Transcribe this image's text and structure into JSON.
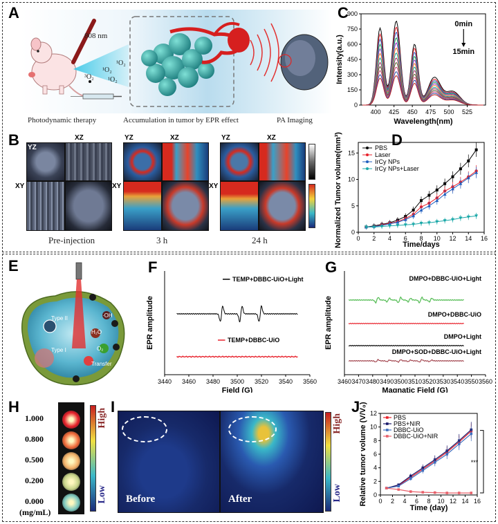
{
  "panels": {
    "A": {
      "label": "A",
      "wavelength": "808 nm",
      "o2_labels": [
        "¹O₂",
        "¹O₂",
        "¹O₂",
        "³O₂"
      ],
      "captions": [
        "Photodynamic therapy",
        "Accumulation in tumor by EPR effect",
        "PA Imaging"
      ]
    },
    "B": {
      "label": "B",
      "view_labels": [
        "YZ",
        "XZ",
        "YZ",
        "XZ",
        "YZ",
        "XZ",
        "XY",
        "XY",
        "XY"
      ],
      "captions": [
        "Pre-injection",
        "3 h",
        "24 h"
      ]
    },
    "E": {
      "label": "E",
      "tags": [
        "·OH",
        "Type II",
        "Type I",
        "H₂O",
        "O₂",
        "Transfer"
      ]
    },
    "H": {
      "label": "H",
      "concentrations": [
        "1.000",
        "0.800",
        "0.500",
        "0.200",
        "0.000"
      ],
      "unit": "(mg/mL)",
      "high": "High",
      "low": "Low",
      "dot_colors": [
        "#e4202a",
        "#f06a3a",
        "#f4b36b",
        "#c9d58b",
        "#7fc9bf"
      ]
    },
    "I": {
      "label": "I",
      "before": "Before",
      "after": "After",
      "high": "High",
      "low": "Low"
    }
  },
  "chart_data": [
    {
      "id": "C",
      "label": "C",
      "type": "line",
      "xlabel": "Wavelength(nm)",
      "ylabel": "Intensity(a.u.)",
      "xlim": [
        380,
        550
      ],
      "ylim": [
        0,
        900
      ],
      "xticks": [
        400,
        425,
        450,
        475,
        500,
        525
      ],
      "yticks": [
        0,
        150,
        300,
        450,
        600,
        750,
        900
      ],
      "annotation_top": "0min",
      "annotation_bottom": "15min",
      "peak_x": [
        406,
        428,
        453,
        480
      ],
      "curve_peaks": [
        [
          760,
          830,
          600,
          270
        ],
        [
          700,
          770,
          560,
          250
        ],
        [
          650,
          720,
          520,
          235
        ],
        [
          600,
          665,
          480,
          220
        ],
        [
          555,
          615,
          445,
          205
        ],
        [
          510,
          565,
          410,
          190
        ],
        [
          465,
          515,
          375,
          172
        ],
        [
          420,
          465,
          340,
          158
        ],
        [
          380,
          420,
          305,
          142
        ],
        [
          340,
          375,
          275,
          128
        ],
        [
          300,
          330,
          245,
          114
        ],
        [
          265,
          290,
          215,
          100
        ]
      ],
      "colors": [
        "#000000",
        "#e8202a",
        "#1f5fbf",
        "#2a9d4a",
        "#9a2bd0",
        "#e58a1a",
        "#17a3a3",
        "#b03060",
        "#556b2f",
        "#d04080",
        "#3050a0",
        "#c02020"
      ]
    },
    {
      "id": "D",
      "label": "D",
      "type": "line",
      "xlabel": "Time/days",
      "ylabel": "Normalized Tumor volume(mm³)",
      "xlim": [
        0,
        16
      ],
      "ylim": [
        0,
        17
      ],
      "xticks": [
        0,
        2,
        4,
        6,
        8,
        10,
        12,
        14,
        16
      ],
      "yticks": [
        0,
        5,
        10,
        15
      ],
      "x": [
        1,
        2,
        3,
        4,
        5,
        6,
        7,
        8,
        9,
        10,
        11,
        12,
        13,
        14,
        15
      ],
      "series": [
        {
          "name": "PBS",
          "color": "#000000",
          "marker": "square",
          "values": [
            1.0,
            1.2,
            1.5,
            1.8,
            2.3,
            3.0,
            4.2,
            6.0,
            7.0,
            8.0,
            9.2,
            10.5,
            12.0,
            13.5,
            15.6
          ]
        },
        {
          "name": "Laser",
          "color": "#e8202a",
          "marker": "circle",
          "values": [
            1.0,
            1.1,
            1.4,
            1.7,
            2.0,
            2.6,
            3.4,
            4.8,
            5.5,
            6.5,
            7.8,
            8.6,
            9.5,
            10.5,
            11.6
          ]
        },
        {
          "name": "IrCy NPs",
          "color": "#1f5fbf",
          "marker": "triangle",
          "values": [
            1.0,
            1.1,
            1.3,
            1.6,
            1.9,
            2.4,
            3.1,
            4.2,
            5.0,
            6.0,
            7.2,
            8.2,
            9.2,
            10.3,
            11.3
          ]
        },
        {
          "name": "IrCy NPs+Laser",
          "color": "#1aa8a8",
          "marker": "triangle-down",
          "values": [
            1.0,
            1.0,
            1.1,
            1.2,
            1.3,
            1.4,
            1.5,
            1.7,
            1.8,
            2.0,
            2.2,
            2.4,
            2.7,
            2.9,
            3.1
          ]
        }
      ]
    },
    {
      "id": "F",
      "label": "F",
      "type": "line",
      "xlabel": "Field (G)",
      "ylabel": "EPR amplitude",
      "xlim": [
        3440,
        3560
      ],
      "xticks": [
        3440,
        3460,
        3480,
        3500,
        3520,
        3540,
        3560
      ],
      "series": [
        {
          "name": "TEMP+DBBC-UiO+Light",
          "color": "#000000"
        },
        {
          "name": "TEMP+DBBC-UiO",
          "color": "#e8202a"
        }
      ]
    },
    {
      "id": "G",
      "label": "G",
      "type": "line",
      "xlabel": "Magnatic Field (G)",
      "ylabel": "EPR amplitude",
      "xlim": [
        3460,
        3560
      ],
      "xticks": [
        3460,
        3470,
        3480,
        3490,
        3500,
        3510,
        3520,
        3530,
        3540,
        3550,
        3560
      ],
      "series": [
        {
          "name": "DMPO+DBBC-UiO+Light",
          "color": "#5cbf5c"
        },
        {
          "name": "DMPO+DBBC-UiO",
          "color": "#e8202a"
        },
        {
          "name": "DMPO+Light",
          "color": "#000000"
        },
        {
          "name": "DMPO+SOD+DBBC-UiO+Light",
          "color": "#a0404a"
        }
      ]
    },
    {
      "id": "J",
      "label": "J",
      "type": "line",
      "xlabel": "Time (day)",
      "ylabel": "Relative tumor volume (V/V₀)",
      "xlim": [
        0,
        16
      ],
      "ylim": [
        0,
        12
      ],
      "xticks": [
        0,
        2,
        4,
        6,
        8,
        10,
        12,
        14,
        16
      ],
      "yticks": [
        0,
        2,
        4,
        6,
        8,
        10,
        12
      ],
      "significance": "***",
      "x": [
        1,
        3,
        5,
        7,
        9,
        11,
        13,
        15
      ],
      "series": [
        {
          "name": "PBS",
          "color": "#e8202a",
          "values": [
            1.0,
            1.4,
            2.6,
            3.8,
            5.0,
            6.3,
            7.8,
            9.4
          ]
        },
        {
          "name": "PBS+NIR",
          "color": "#1a1a6a",
          "values": [
            1.0,
            1.5,
            2.8,
            4.0,
            5.2,
            6.5,
            8.0,
            9.6
          ]
        },
        {
          "name": "DBBC-UiO",
          "color": "#3f6fbf",
          "values": [
            1.0,
            1.3,
            2.4,
            3.6,
            4.8,
            6.0,
            7.5,
            9.0
          ]
        },
        {
          "name": "DBBC-UiO+NIR",
          "color": "#e8606a",
          "values": [
            1.0,
            0.8,
            0.5,
            0.4,
            0.35,
            0.3,
            0.3,
            0.3
          ]
        }
      ]
    }
  ]
}
